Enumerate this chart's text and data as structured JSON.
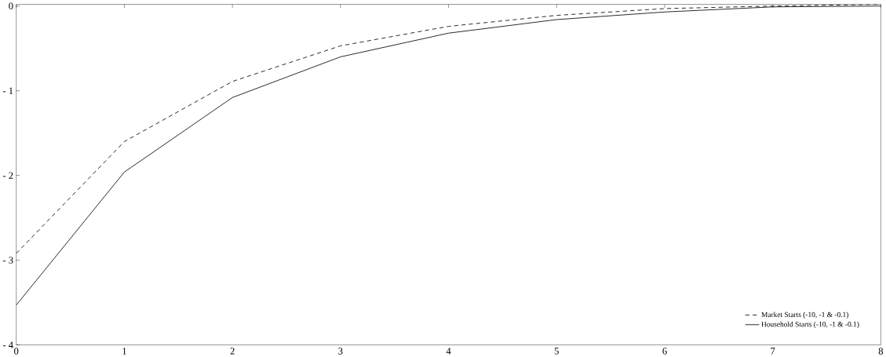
{
  "chart_data": {
    "type": "line",
    "x": [
      0,
      1,
      2,
      3,
      4,
      5,
      6,
      7,
      8
    ],
    "series": [
      {
        "name": "Market Starts (-10, -1 & -0.1)",
        "color": "#000000",
        "line_style": "dashed",
        "values": [
          -2.92,
          -1.6,
          -0.89,
          -0.47,
          -0.24,
          -0.11,
          -0.03,
          0.0,
          0.02
        ]
      },
      {
        "name": "Household Starts (-10, -1 & -0.1)",
        "color": "#000000",
        "line_style": "solid",
        "values": [
          -3.53,
          -1.96,
          -1.08,
          -0.6,
          -0.32,
          -0.16,
          -0.07,
          -0.01,
          0.0
        ]
      }
    ],
    "xlim": [
      0,
      8
    ],
    "ylim": [
      -4,
      0.02
    ],
    "xticks": [
      0,
      1,
      2,
      3,
      4,
      5,
      6,
      7,
      8
    ],
    "yticks": [
      {
        "value": -4,
        "label": "- 4"
      },
      {
        "value": -3,
        "label": "- 3"
      },
      {
        "value": -2,
        "label": "- 2"
      },
      {
        "value": -1,
        "label": "- 1"
      },
      0
    ],
    "grid": false,
    "legend": "bottom right",
    "marker": "none"
  }
}
